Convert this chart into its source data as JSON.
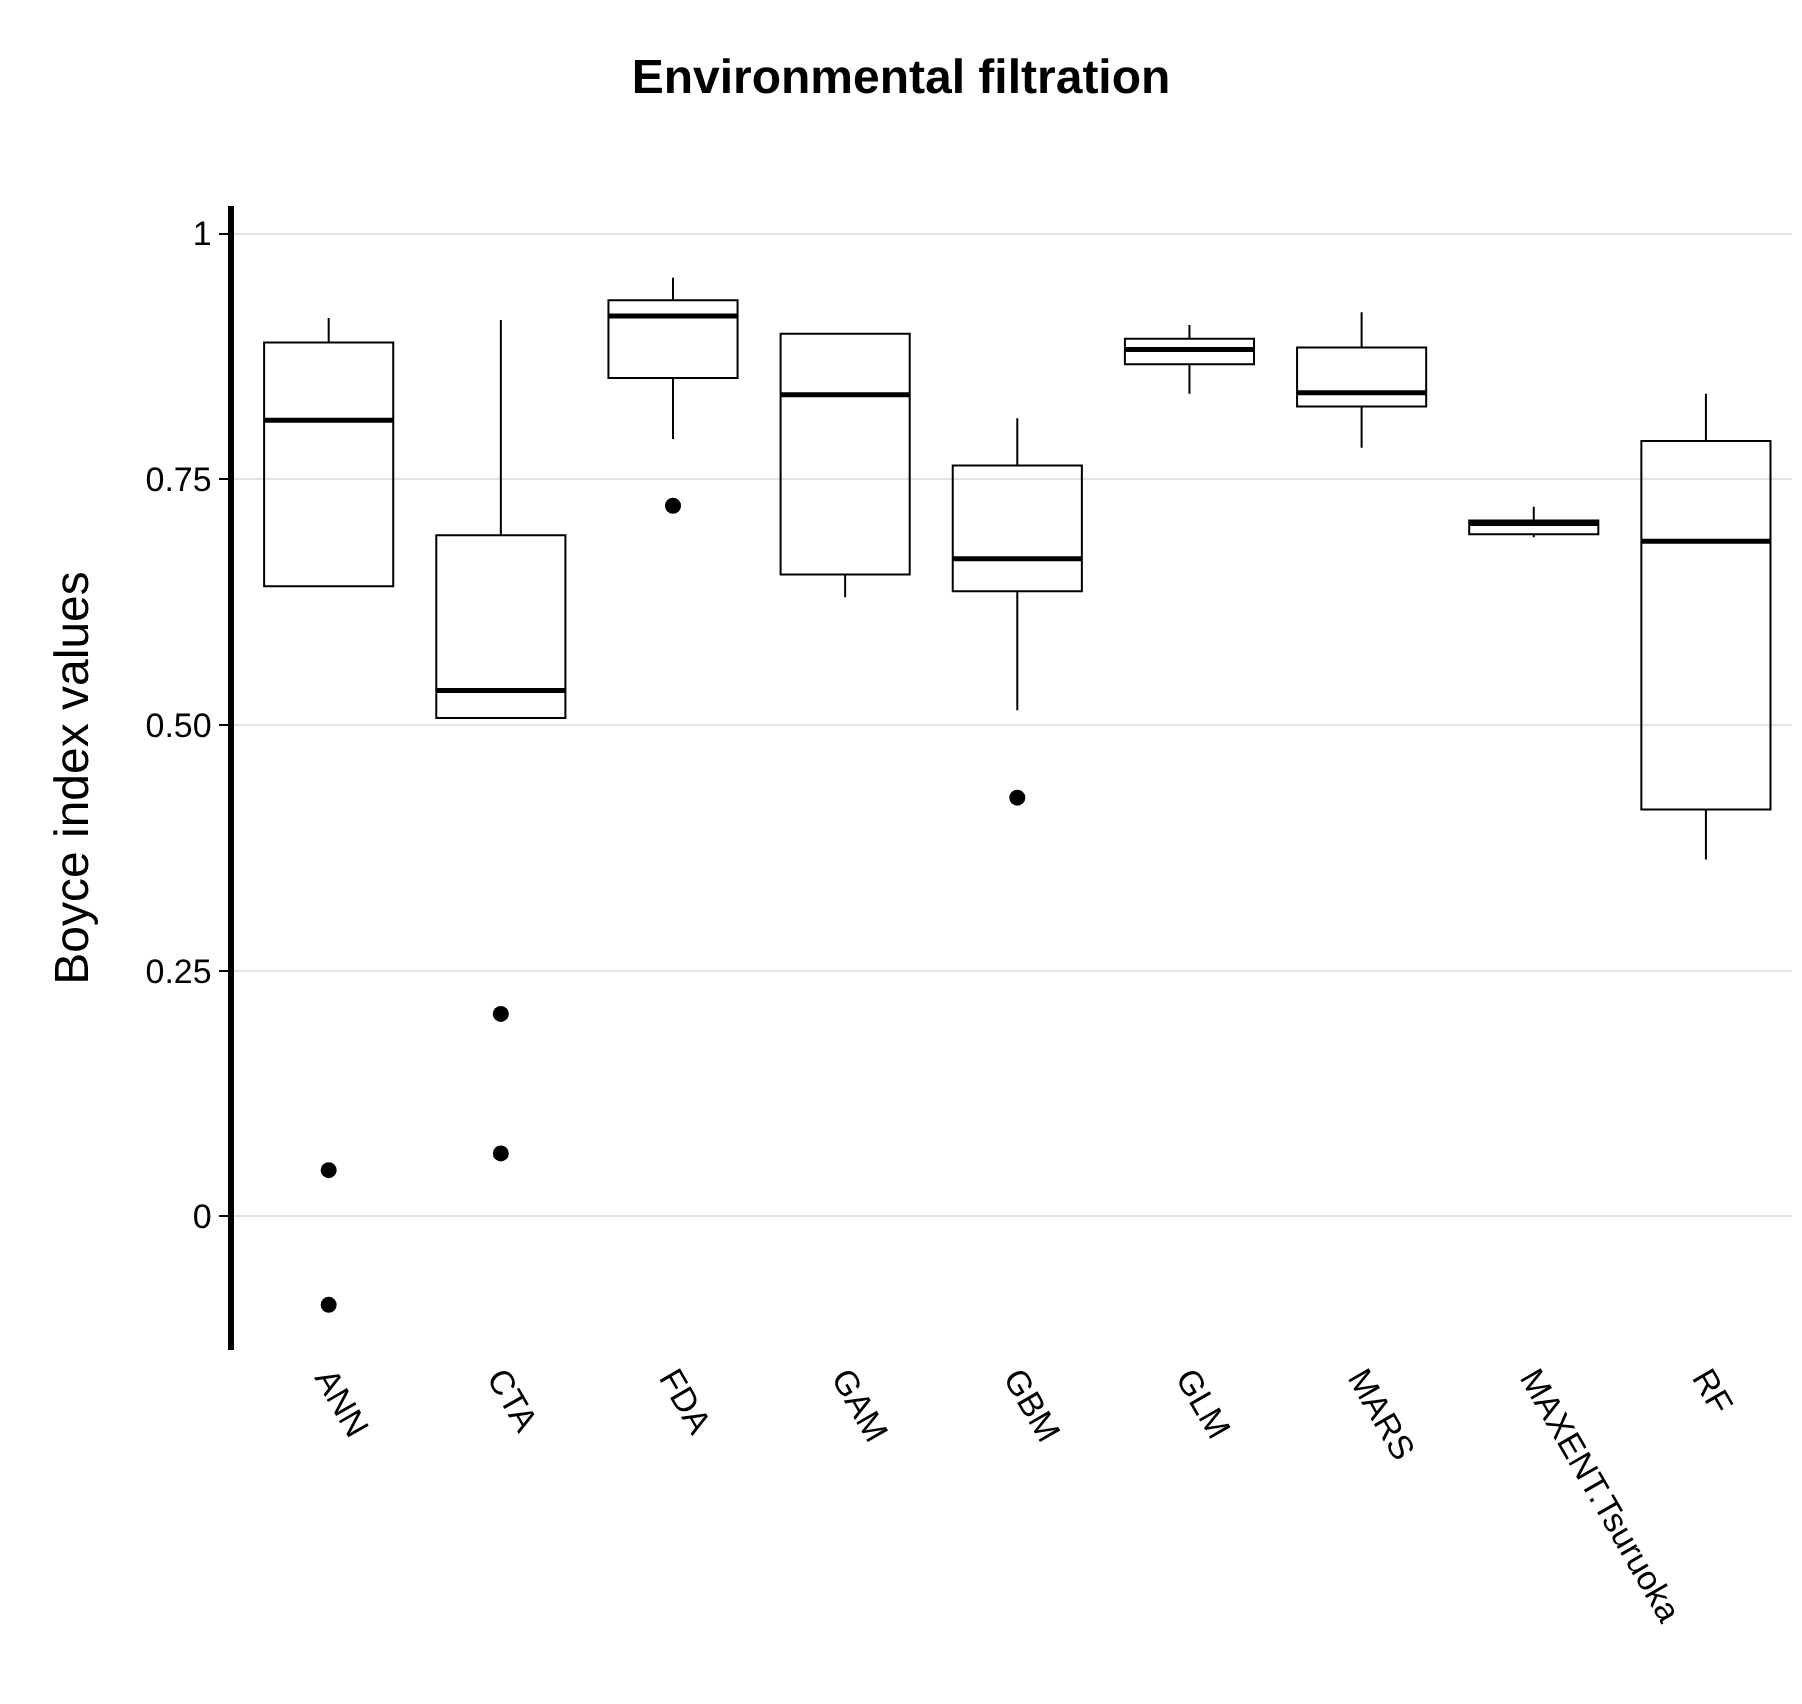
{
  "chart_data": {
    "type": "box",
    "title": "Environmental filtration",
    "ylabel": "Boyce index values",
    "categories": [
      "ANN",
      "CTA",
      "FDA",
      "GAM",
      "GBM",
      "GLM",
      "MARS",
      "MAXENT.Tsuruoka",
      "RF"
    ],
    "boxes": [
      {
        "low": 0.641,
        "q1": 0.641,
        "median": 0.81,
        "q3": 0.889,
        "high": 0.914,
        "outliers": [
          0.047,
          -0.09
        ]
      },
      {
        "low": 0.507,
        "q1": 0.507,
        "median": 0.535,
        "q3": 0.693,
        "high": 0.912,
        "outliers": [
          0.206,
          0.064
        ]
      },
      {
        "low": 0.791,
        "q1": 0.853,
        "median": 0.916,
        "q3": 0.932,
        "high": 0.955,
        "outliers": [
          0.723
        ]
      },
      {
        "low": 0.63,
        "q1": 0.653,
        "median": 0.836,
        "q3": 0.898,
        "high": 0.898
      },
      {
        "low": 0.515,
        "q1": 0.636,
        "median": 0.669,
        "q3": 0.764,
        "high": 0.812,
        "outliers": [
          0.426
        ]
      },
      {
        "low": 0.837,
        "q1": 0.867,
        "median": 0.882,
        "q3": 0.893,
        "high": 0.907
      },
      {
        "low": 0.782,
        "q1": 0.824,
        "median": 0.838,
        "q3": 0.884,
        "high": 0.92
      },
      {
        "low": 0.691,
        "q1": 0.694,
        "median": 0.705,
        "q3": 0.708,
        "high": 0.722
      },
      {
        "low": 0.363,
        "q1": 0.414,
        "median": 0.687,
        "q3": 0.789,
        "high": 0.837
      }
    ],
    "color": "#000000",
    "ylim": [
      -0.136,
      1.028
    ],
    "yticks": [
      {
        "value": 0,
        "label": "0"
      },
      {
        "value": 0.25,
        "label": "0.25"
      },
      {
        "value": 0.5,
        "label": "0.50"
      },
      {
        "value": 0.75,
        "label": "0.75"
      },
      {
        "value": 1,
        "label": "1"
      }
    ],
    "grid": "y"
  }
}
